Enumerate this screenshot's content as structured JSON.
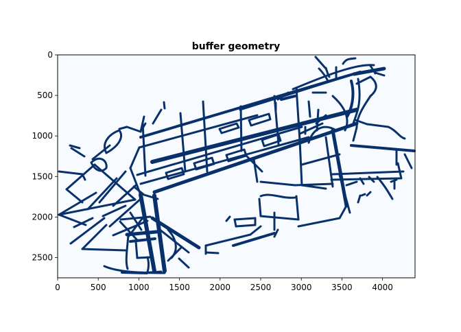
{
  "chart_data": {
    "type": "map",
    "title": "buffer geometry",
    "colormap": "Blues",
    "background_color": "#f7fbff",
    "feature_color": "#08306b",
    "xlim": [
      0,
      4400
    ],
    "ylim": [
      2750,
      0
    ],
    "y_axis_inverted": true,
    "grid": false,
    "x_ticks": [
      {
        "value": 0,
        "label": "0"
      },
      {
        "value": 500,
        "label": "500"
      },
      {
        "value": 1000,
        "label": "1000"
      },
      {
        "value": 1500,
        "label": "1500"
      },
      {
        "value": 2000,
        "label": "2000"
      },
      {
        "value": 2500,
        "label": "2500"
      },
      {
        "value": 3000,
        "label": "3000"
      },
      {
        "value": 3500,
        "label": "3500"
      },
      {
        "value": 4000,
        "label": "4000"
      }
    ],
    "y_ticks": [
      {
        "value": 0,
        "label": "0"
      },
      {
        "value": 500,
        "label": "500"
      },
      {
        "value": 1000,
        "label": "1000"
      },
      {
        "value": 1500,
        "label": "1500"
      },
      {
        "value": 2000,
        "label": "2000"
      },
      {
        "value": 2500,
        "label": "2500"
      }
    ]
  }
}
